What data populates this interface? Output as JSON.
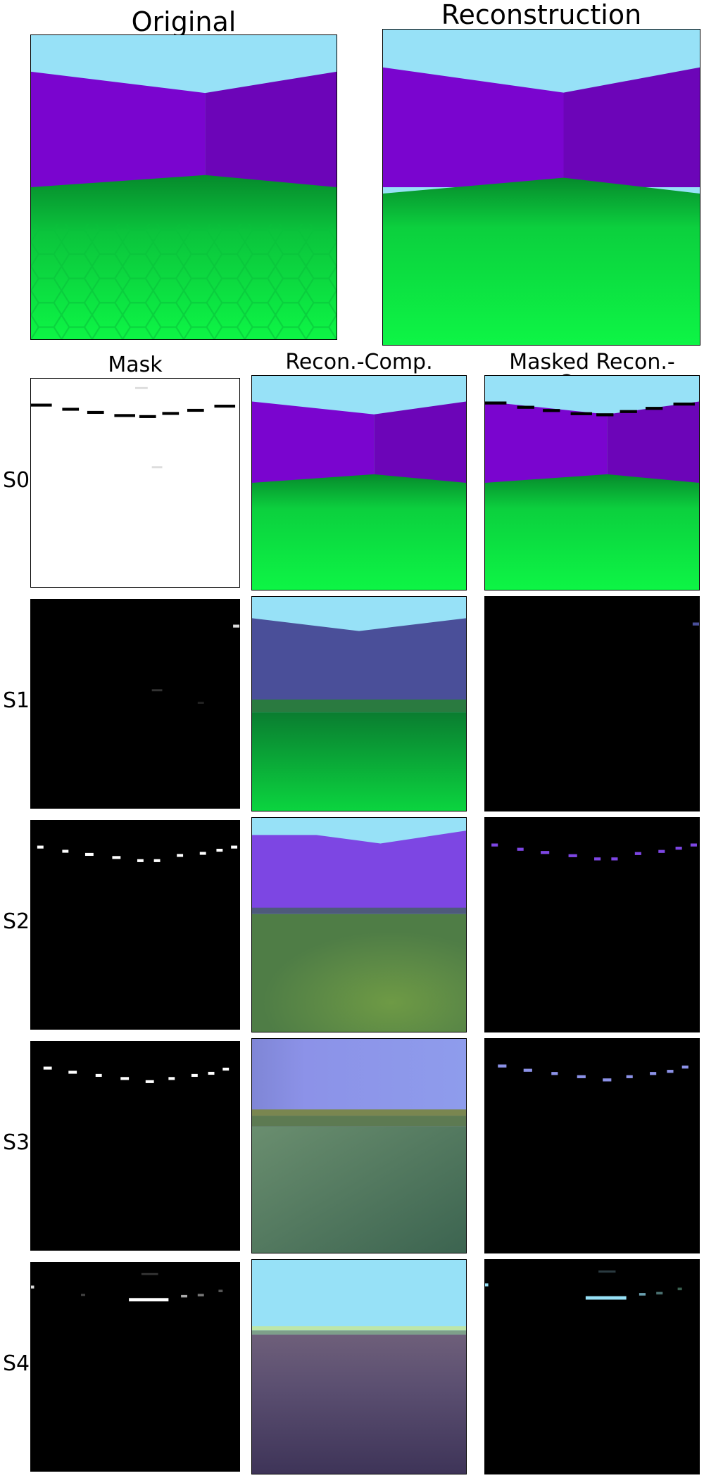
{
  "titles": {
    "original": "Original",
    "reconstruction": "Reconstruction"
  },
  "columns": {
    "mask": "Mask",
    "recon_comp": "Recon.-Comp.",
    "masked_recon_comp": "Masked Recon.-Comp."
  },
  "rows": [
    "S0",
    "S1",
    "S2",
    "S3",
    "S4"
  ],
  "colors": {
    "sky": "#97e1f7",
    "wall": "#7a05cf",
    "wall_dark": "#6c05b8",
    "floor_dark": "#078a2e",
    "floor_bright": "#0af545"
  }
}
